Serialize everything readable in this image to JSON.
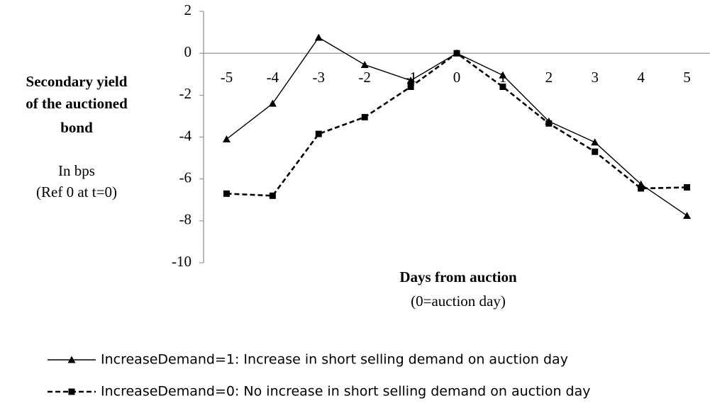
{
  "chart_data": {
    "type": "line",
    "ylabel": [
      "Secondary yield",
      "of the auctioned",
      "bond"
    ],
    "ysublabel": [
      "In bps",
      "(Ref 0 at t=0)"
    ],
    "xlabel": "Days from auction",
    "xsublabel": "(0=auction day)",
    "x": [
      -5,
      -4,
      -3,
      -2,
      -1,
      0,
      1,
      2,
      3,
      4,
      5
    ],
    "xlim": [
      -5.5,
      5.5
    ],
    "xticks": [
      -5,
      -4,
      -3,
      -2,
      -1,
      0,
      1,
      2,
      3,
      4,
      5
    ],
    "ylim": [
      -10,
      2
    ],
    "yticks": [
      -10,
      -8,
      -6,
      -4,
      -2,
      0,
      2
    ],
    "series": [
      {
        "name": "IncreaseDemand=1: Increase in short selling demand on auction day",
        "color": "#000000",
        "marker": "triangle",
        "dashed": false,
        "values": [
          -4.1,
          -2.4,
          0.75,
          -0.55,
          -1.3,
          0,
          -1.05,
          -3.25,
          -4.25,
          -6.25,
          -7.75
        ]
      },
      {
        "name": "IncreaseDemand=0: No increase in short selling demand on auction day",
        "color": "#000000",
        "marker": "square",
        "dashed": true,
        "values": [
          -6.7,
          -6.8,
          -3.85,
          -3.05,
          -1.6,
          0,
          -1.6,
          -3.35,
          -4.7,
          -6.45,
          -6.4
        ]
      }
    ]
  }
}
